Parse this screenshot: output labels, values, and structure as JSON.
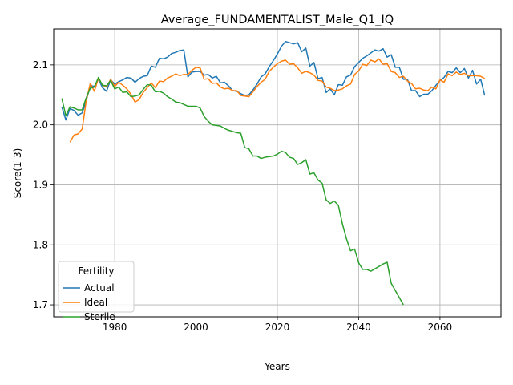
{
  "chart_data": {
    "type": "line",
    "title": "Average_FUNDAMENTALIST_Male_Q1_IQ",
    "xlabel": "Years",
    "ylabel": "Score(1-3)",
    "xlim": [
      1965,
      2075
    ],
    "ylim": [
      1.68,
      2.16
    ],
    "xticks": [
      1980,
      2000,
      2020,
      2040,
      2060
    ],
    "yticks": [
      1.7,
      1.8,
      1.9,
      2.0,
      2.1
    ],
    "xtick_labels": [
      "1980",
      "2000",
      "2020",
      "2040",
      "2060"
    ],
    "ytick_labels": [
      "1.7",
      "1.8",
      "1.9",
      "2.0",
      "2.1"
    ],
    "grid": true,
    "legend": {
      "title": "Fertility",
      "position": "lower-left"
    },
    "series": [
      {
        "name": "Actual",
        "color": "#1f77b4",
        "points": [
          [
            1967,
            2.03
          ],
          [
            1968,
            2.008
          ],
          [
            1969,
            2.027
          ],
          [
            1970,
            2.024
          ],
          [
            1971,
            2.016
          ],
          [
            1972,
            2.02
          ],
          [
            1973,
            2.04
          ],
          [
            1974,
            2.066
          ],
          [
            1975,
            2.064
          ],
          [
            1976,
            2.076
          ],
          [
            1977,
            2.062
          ],
          [
            1978,
            2.056
          ],
          [
            1979,
            2.075
          ],
          [
            1980,
            2.068
          ],
          [
            1981,
            2.072
          ],
          [
            1982,
            2.075
          ],
          [
            1983,
            2.079
          ],
          [
            1984,
            2.078
          ],
          [
            1985,
            2.071
          ],
          [
            1986,
            2.077
          ],
          [
            1987,
            2.081
          ],
          [
            1988,
            2.082
          ],
          [
            1989,
            2.098
          ],
          [
            1990,
            2.096
          ],
          [
            1991,
            2.111
          ],
          [
            1992,
            2.11
          ],
          [
            1993,
            2.113
          ],
          [
            1994,
            2.119
          ],
          [
            1995,
            2.121
          ],
          [
            1996,
            2.124
          ],
          [
            1997,
            2.125
          ],
          [
            1998,
            2.08
          ],
          [
            1999,
            2.088
          ],
          [
            2000,
            2.089
          ],
          [
            2001,
            2.089
          ],
          [
            2002,
            2.083
          ],
          [
            2003,
            2.084
          ],
          [
            2004,
            2.078
          ],
          [
            2005,
            2.081
          ],
          [
            2006,
            2.07
          ],
          [
            2007,
            2.071
          ],
          [
            2008,
            2.065
          ],
          [
            2009,
            2.057
          ],
          [
            2010,
            2.056
          ],
          [
            2011,
            2.052
          ],
          [
            2012,
            2.049
          ],
          [
            2013,
            2.05
          ],
          [
            2014,
            2.058
          ],
          [
            2015,
            2.068
          ],
          [
            2016,
            2.08
          ],
          [
            2017,
            2.085
          ],
          [
            2018,
            2.097
          ],
          [
            2019,
            2.107
          ],
          [
            2020,
            2.118
          ],
          [
            2021,
            2.131
          ],
          [
            2022,
            2.139
          ],
          [
            2023,
            2.137
          ],
          [
            2024,
            2.135
          ],
          [
            2025,
            2.137
          ],
          [
            2026,
            2.122
          ],
          [
            2027,
            2.128
          ],
          [
            2028,
            2.098
          ],
          [
            2029,
            2.104
          ],
          [
            2030,
            2.077
          ],
          [
            2031,
            2.079
          ],
          [
            2032,
            2.054
          ],
          [
            2033,
            2.06
          ],
          [
            2034,
            2.05
          ],
          [
            2035,
            2.067
          ],
          [
            2036,
            2.066
          ],
          [
            2037,
            2.08
          ],
          [
            2038,
            2.083
          ],
          [
            2039,
            2.097
          ],
          [
            2040,
            2.104
          ],
          [
            2041,
            2.111
          ],
          [
            2042,
            2.115
          ],
          [
            2043,
            2.12
          ],
          [
            2044,
            2.125
          ],
          [
            2045,
            2.123
          ],
          [
            2046,
            2.127
          ],
          [
            2047,
            2.113
          ],
          [
            2048,
            2.117
          ],
          [
            2049,
            2.096
          ],
          [
            2050,
            2.096
          ],
          [
            2051,
            2.076
          ],
          [
            2052,
            2.076
          ],
          [
            2053,
            2.057
          ],
          [
            2054,
            2.057
          ],
          [
            2055,
            2.047
          ],
          [
            2056,
            2.051
          ],
          [
            2057,
            2.051
          ],
          [
            2058,
            2.057
          ],
          [
            2059,
            2.066
          ],
          [
            2060,
            2.074
          ],
          [
            2061,
            2.079
          ],
          [
            2062,
            2.089
          ],
          [
            2063,
            2.087
          ],
          [
            2064,
            2.095
          ],
          [
            2065,
            2.087
          ],
          [
            2066,
            2.094
          ],
          [
            2067,
            2.078
          ],
          [
            2068,
            2.091
          ],
          [
            2069,
            2.068
          ],
          [
            2070,
            2.076
          ],
          [
            2071,
            2.049
          ]
        ]
      },
      {
        "name": "Ideal",
        "color": "#ff7f0e",
        "points": [
          [
            1969,
            1.971
          ],
          [
            1970,
            1.983
          ],
          [
            1971,
            1.985
          ],
          [
            1972,
            1.993
          ],
          [
            1973,
            2.04
          ],
          [
            1974,
            2.069
          ],
          [
            1975,
            2.056
          ],
          [
            1976,
            2.078
          ],
          [
            1977,
            2.066
          ],
          [
            1978,
            2.063
          ],
          [
            1979,
            2.076
          ],
          [
            1980,
            2.064
          ],
          [
            1981,
            2.071
          ],
          [
            1982,
            2.066
          ],
          [
            1983,
            2.06
          ],
          [
            1984,
            2.051
          ],
          [
            1985,
            2.038
          ],
          [
            1986,
            2.042
          ],
          [
            1987,
            2.054
          ],
          [
            1988,
            2.062
          ],
          [
            1989,
            2.07
          ],
          [
            1990,
            2.062
          ],
          [
            1991,
            2.073
          ],
          [
            1992,
            2.072
          ],
          [
            1993,
            2.078
          ],
          [
            1994,
            2.081
          ],
          [
            1995,
            2.085
          ],
          [
            1996,
            2.082
          ],
          [
            1997,
            2.084
          ],
          [
            1998,
            2.084
          ],
          [
            1999,
            2.091
          ],
          [
            2000,
            2.096
          ],
          [
            2001,
            2.095
          ],
          [
            2002,
            2.076
          ],
          [
            2003,
            2.077
          ],
          [
            2004,
            2.069
          ],
          [
            2005,
            2.07
          ],
          [
            2006,
            2.063
          ],
          [
            2007,
            2.06
          ],
          [
            2008,
            2.061
          ],
          [
            2009,
            2.057
          ],
          [
            2010,
            2.057
          ],
          [
            2011,
            2.049
          ],
          [
            2012,
            2.048
          ],
          [
            2013,
            2.047
          ],
          [
            2014,
            2.055
          ],
          [
            2015,
            2.064
          ],
          [
            2016,
            2.071
          ],
          [
            2017,
            2.076
          ],
          [
            2018,
            2.089
          ],
          [
            2019,
            2.096
          ],
          [
            2020,
            2.102
          ],
          [
            2021,
            2.106
          ],
          [
            2022,
            2.108
          ],
          [
            2023,
            2.101
          ],
          [
            2024,
            2.102
          ],
          [
            2025,
            2.095
          ],
          [
            2026,
            2.086
          ],
          [
            2027,
            2.089
          ],
          [
            2028,
            2.087
          ],
          [
            2029,
            2.083
          ],
          [
            2030,
            2.074
          ],
          [
            2031,
            2.073
          ],
          [
            2032,
            2.063
          ],
          [
            2033,
            2.061
          ],
          [
            2034,
            2.057
          ],
          [
            2035,
            2.058
          ],
          [
            2036,
            2.06
          ],
          [
            2037,
            2.065
          ],
          [
            2038,
            2.068
          ],
          [
            2039,
            2.084
          ],
          [
            2040,
            2.09
          ],
          [
            2041,
            2.101
          ],
          [
            2042,
            2.099
          ],
          [
            2043,
            2.108
          ],
          [
            2044,
            2.105
          ],
          [
            2045,
            2.11
          ],
          [
            2046,
            2.101
          ],
          [
            2047,
            2.102
          ],
          [
            2048,
            2.089
          ],
          [
            2049,
            2.087
          ],
          [
            2050,
            2.079
          ],
          [
            2051,
            2.081
          ],
          [
            2052,
            2.073
          ],
          [
            2053,
            2.069
          ],
          [
            2054,
            2.06
          ],
          [
            2055,
            2.061
          ],
          [
            2056,
            2.058
          ],
          [
            2057,
            2.057
          ],
          [
            2058,
            2.063
          ],
          [
            2059,
            2.06
          ],
          [
            2060,
            2.075
          ],
          [
            2061,
            2.071
          ],
          [
            2062,
            2.085
          ],
          [
            2063,
            2.082
          ],
          [
            2064,
            2.088
          ],
          [
            2065,
            2.084
          ],
          [
            2066,
            2.086
          ],
          [
            2067,
            2.082
          ],
          [
            2068,
            2.082
          ],
          [
            2069,
            2.082
          ],
          [
            2070,
            2.081
          ],
          [
            2071,
            2.077
          ]
        ]
      },
      {
        "name": "Sterile",
        "color": "#2ca02c",
        "points": [
          [
            1967,
            2.044
          ],
          [
            1968,
            2.015
          ],
          [
            1969,
            2.03
          ],
          [
            1970,
            2.028
          ],
          [
            1971,
            2.025
          ],
          [
            1972,
            2.025
          ],
          [
            1973,
            2.045
          ],
          [
            1974,
            2.061
          ],
          [
            1975,
            2.063
          ],
          [
            1976,
            2.079
          ],
          [
            1977,
            2.066
          ],
          [
            1978,
            2.065
          ],
          [
            1979,
            2.074
          ],
          [
            1980,
            2.06
          ],
          [
            1981,
            2.063
          ],
          [
            1982,
            2.054
          ],
          [
            1983,
            2.055
          ],
          [
            1984,
            2.047
          ],
          [
            1985,
            2.048
          ],
          [
            1986,
            2.05
          ],
          [
            1987,
            2.059
          ],
          [
            1988,
            2.067
          ],
          [
            1989,
            2.066
          ],
          [
            1990,
            2.055
          ],
          [
            1991,
            2.056
          ],
          [
            1992,
            2.053
          ],
          [
            1993,
            2.047
          ],
          [
            1994,
            2.043
          ],
          [
            1995,
            2.038
          ],
          [
            1996,
            2.037
          ],
          [
            1997,
            2.034
          ],
          [
            1998,
            2.031
          ],
          [
            1999,
            2.031
          ],
          [
            2000,
            2.031
          ],
          [
            2001,
            2.028
          ],
          [
            2002,
            2.014
          ],
          [
            2003,
            2.006
          ],
          [
            2004,
            2.0
          ],
          [
            2005,
            1.999
          ],
          [
            2006,
            1.998
          ],
          [
            2007,
            1.994
          ],
          [
            2008,
            1.991
          ],
          [
            2009,
            1.989
          ],
          [
            2010,
            1.987
          ],
          [
            2011,
            1.986
          ],
          [
            2012,
            1.962
          ],
          [
            2013,
            1.96
          ],
          [
            2014,
            1.948
          ],
          [
            2015,
            1.948
          ],
          [
            2016,
            1.944
          ],
          [
            2017,
            1.946
          ],
          [
            2018,
            1.947
          ],
          [
            2019,
            1.948
          ],
          [
            2020,
            1.951
          ],
          [
            2021,
            1.956
          ],
          [
            2022,
            1.954
          ],
          [
            2023,
            1.946
          ],
          [
            2024,
            1.944
          ],
          [
            2025,
            1.934
          ],
          [
            2026,
            1.937
          ],
          [
            2027,
            1.942
          ],
          [
            2028,
            1.918
          ],
          [
            2029,
            1.92
          ],
          [
            2030,
            1.908
          ],
          [
            2031,
            1.903
          ],
          [
            2032,
            1.875
          ],
          [
            2033,
            1.869
          ],
          [
            2034,
            1.873
          ],
          [
            2035,
            1.866
          ],
          [
            2036,
            1.835
          ],
          [
            2037,
            1.81
          ],
          [
            2038,
            1.79
          ],
          [
            2039,
            1.793
          ],
          [
            2040,
            1.77
          ],
          [
            2041,
            1.759
          ],
          [
            2042,
            1.759
          ],
          [
            2043,
            1.756
          ],
          [
            2044,
            1.76
          ],
          [
            2045,
            1.764
          ],
          [
            2046,
            1.768
          ],
          [
            2047,
            1.771
          ],
          [
            2048,
            1.736
          ],
          [
            2049,
            1.724
          ],
          [
            2050,
            1.712
          ],
          [
            2051,
            1.7
          ]
        ]
      }
    ]
  }
}
